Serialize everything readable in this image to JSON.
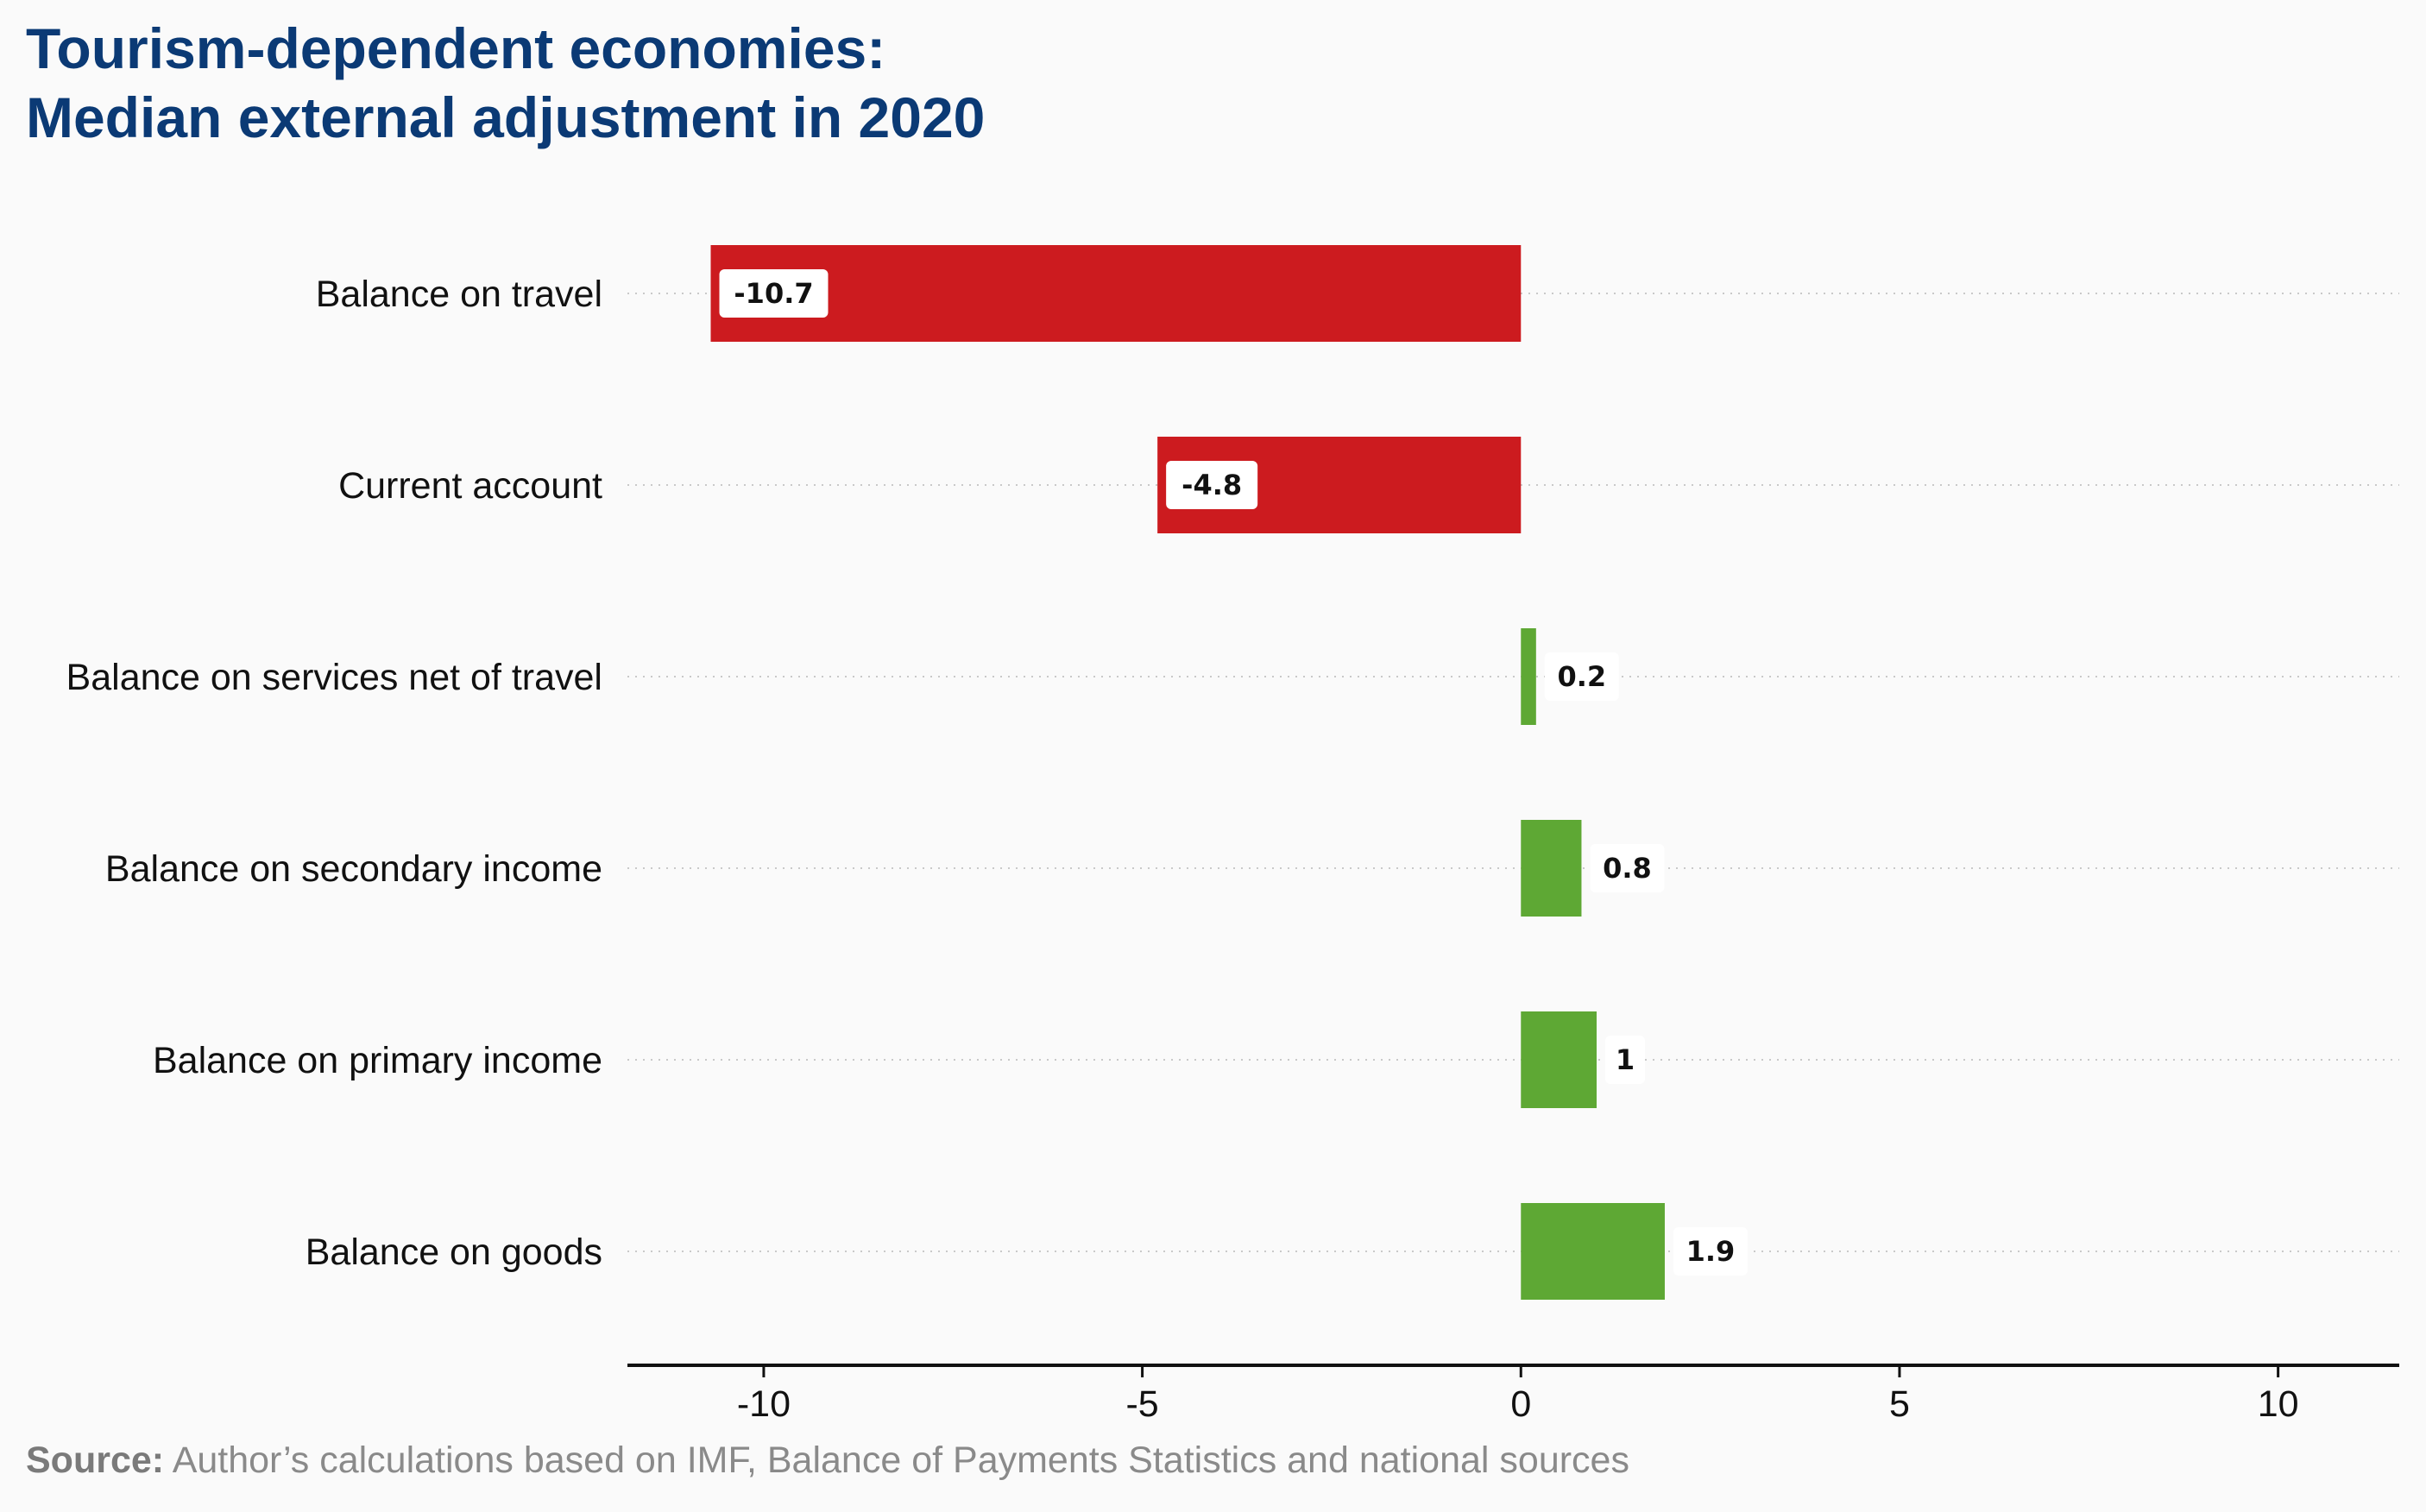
{
  "title_lines": [
    "Tourism-dependent economies:",
    "Median external adjustment in 2020"
  ],
  "source_label": "Source:",
  "source_text": "Author’s calculations based on IMF, Balance of Payments Statistics and national sources",
  "colors": {
    "negative": "#cc1b1f",
    "positive": "#5ea834",
    "title": "#0b3a75"
  },
  "chart_data": {
    "type": "bar",
    "orientation": "horizontal",
    "categories": [
      "Balance on travel",
      "Current account",
      "Balance on services net of travel",
      "Balance on secondary income",
      "Balance on primary income",
      "Balance on goods"
    ],
    "values": [
      -10.7,
      -4.8,
      0.2,
      0.8,
      1,
      1.9
    ],
    "value_labels": [
      "-10.7",
      "-4.8",
      "0.2",
      "0.8",
      "1",
      "1.9"
    ],
    "xlim": [
      -11.8,
      11.6
    ],
    "xticks": [
      -10,
      -5,
      0,
      5,
      10
    ],
    "xtick_labels": [
      "-10",
      "-5",
      "0",
      "5",
      "10"
    ],
    "grid": "dotted horizontal",
    "legend": "none"
  }
}
